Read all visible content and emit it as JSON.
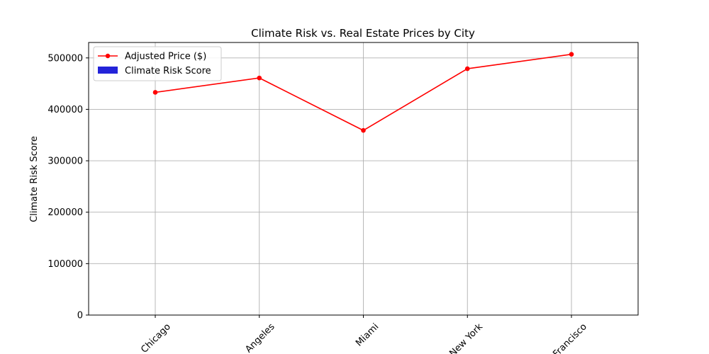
{
  "chart_data": {
    "type": "line",
    "title": "Climate Risk vs. Real Estate Prices by City",
    "xlabel": "",
    "ylabel": "Climate Risk Score",
    "categories": [
      "Chicago",
      "Los Angeles",
      "Miami",
      "New York",
      "San Francisco"
    ],
    "tick_labels_visible": [
      "Chicago",
      "Angeles",
      "Miami",
      "New York",
      "Francisco"
    ],
    "ylim": [
      0,
      530000
    ],
    "yticks": [
      0,
      100000,
      200000,
      300000,
      400000,
      500000
    ],
    "ytick_labels": [
      "0",
      "100000",
      "200000",
      "300000",
      "400000",
      "500000"
    ],
    "grid": true,
    "legend_position": "top-left",
    "series": [
      {
        "name": "Adjusted Price ($)",
        "kind": "line",
        "color": "#ff0000",
        "values": [
          433000,
          461000,
          359000,
          479000,
          507000
        ]
      },
      {
        "name": "Climate Risk Score",
        "kind": "bar",
        "color": "#2323d9",
        "values": [
          0,
          0,
          0,
          0,
          0
        ]
      }
    ]
  }
}
